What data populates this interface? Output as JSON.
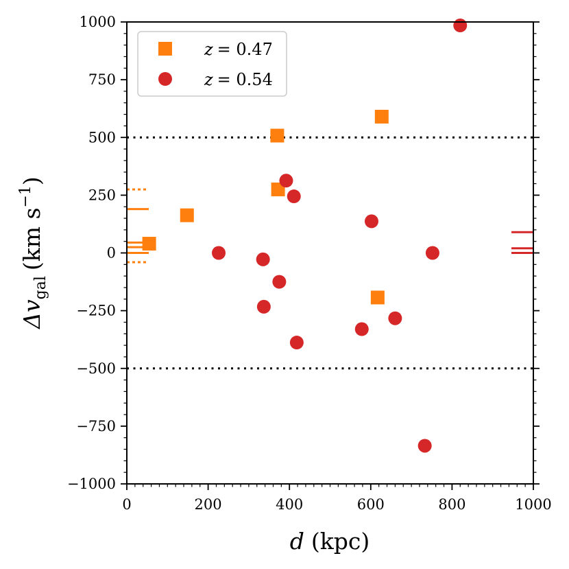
{
  "chart_data": {
    "type": "scatter",
    "xlabel_var": "d",
    "xlabel_unit": "(kpc)",
    "ylabel_var": "Δv",
    "ylabel_sub": "gal",
    "ylabel_unit": "(km s",
    "ylabel_exp": "−1",
    "ylabel_close": ")",
    "xlim": [
      0,
      1000
    ],
    "ylim": [
      -1000,
      1000
    ],
    "x_ticks": [
      0,
      200,
      400,
      600,
      800,
      1000
    ],
    "y_ticks": [
      -1000,
      -750,
      -500,
      -250,
      0,
      250,
      500,
      750,
      1000
    ],
    "x_tick_labels": [
      "0",
      "200",
      "400",
      "600",
      "800",
      "1000"
    ],
    "y_tick_labels": [
      "−1000",
      "−750",
      "−500",
      "−250",
      "0",
      "250",
      "500",
      "750",
      "1000"
    ],
    "reference_lines": [
      500,
      -500
    ],
    "legend_position": "top-left",
    "series": [
      {
        "name": "z = 0.47",
        "label_var": "z",
        "label_eq": "= 0.47",
        "marker": "square",
        "color": "#ff7f0e",
        "x": [
          55,
          148,
          370,
          372,
          627,
          617
        ],
        "y": [
          40,
          163,
          508,
          275,
          590,
          -193
        ]
      },
      {
        "name": "z = 0.54",
        "label_var": "z",
        "label_eq": "= 0.54",
        "marker": "circle",
        "color": "#d62728",
        "x": [
          226,
          335,
          337,
          375,
          392,
          411,
          418,
          578,
          602,
          660,
          733,
          752,
          820
        ],
        "y": [
          0,
          -28,
          -233,
          -125,
          313,
          245,
          -388,
          -330,
          137,
          -283,
          -835,
          0,
          985
        ]
      }
    ],
    "side_markers": {
      "left": {
        "color": "#ff7f0e",
        "solid": [
          190,
          45,
          25,
          0
        ],
        "dotted": [
          275,
          -40
        ]
      },
      "right": {
        "color": "#d62728",
        "solid": [
          90,
          20,
          0
        ]
      }
    }
  }
}
